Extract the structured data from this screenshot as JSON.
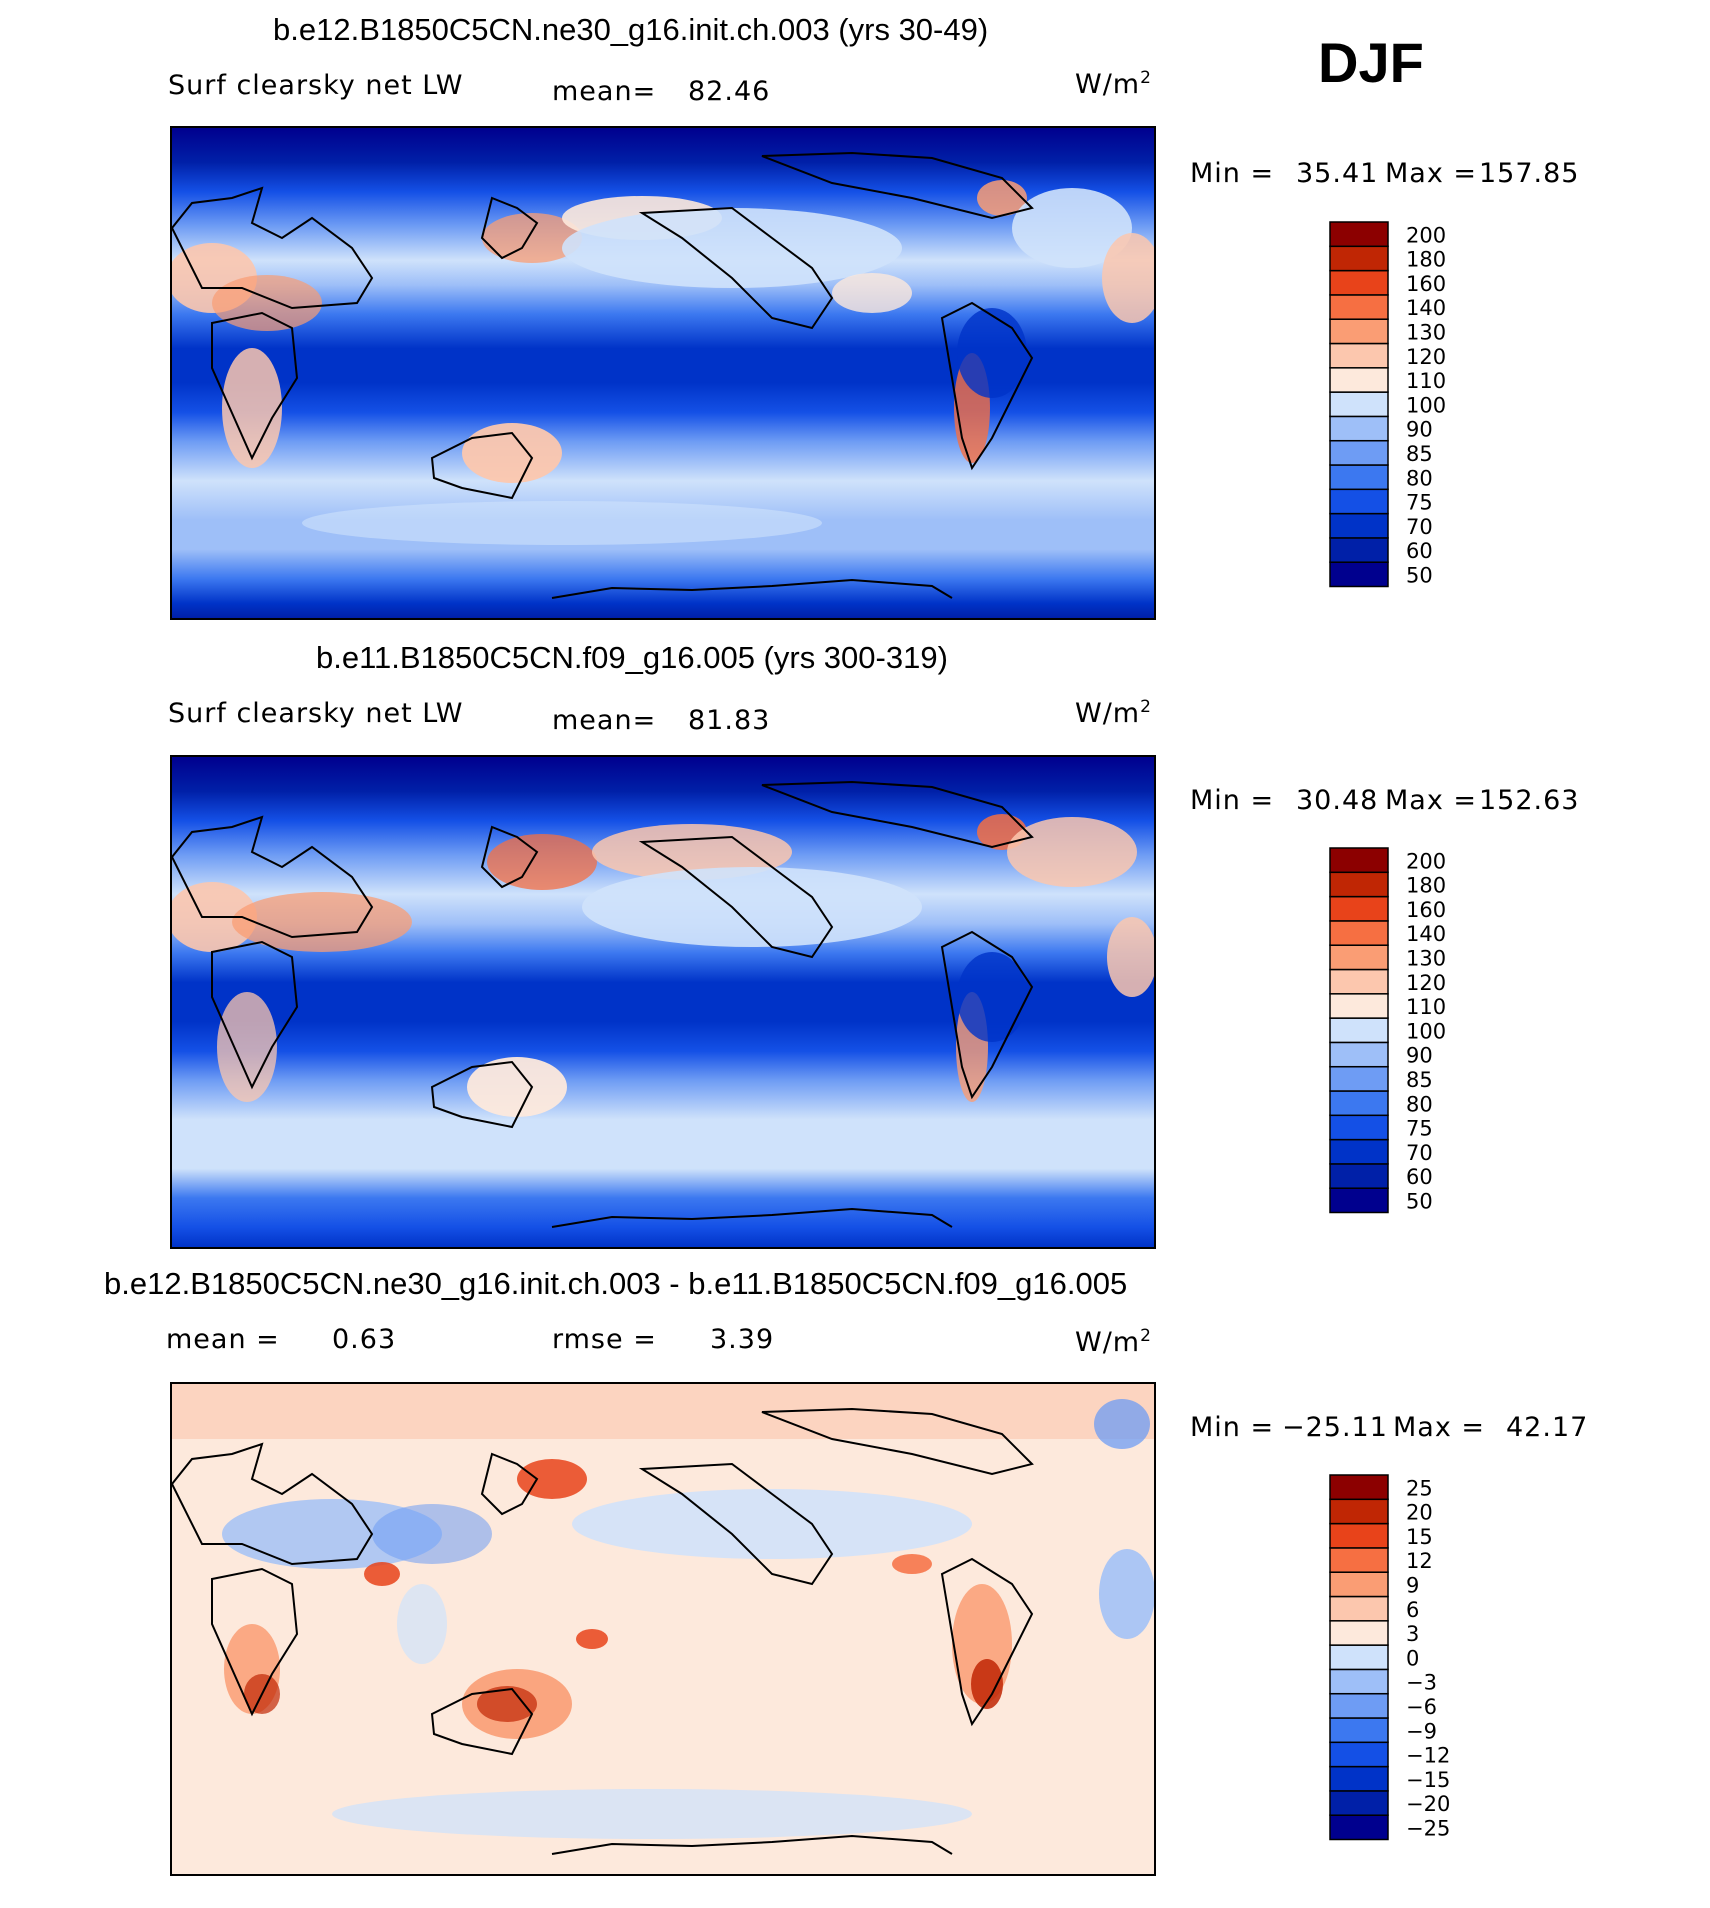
{
  "season": "DJF",
  "colors": {
    "full": [
      "#00008e",
      "#0020a8",
      "#0033c8",
      "#1450e6",
      "#3c78f0",
      "#6e9cf4",
      "#9ebff8",
      "#cfe2fb",
      "#fde9dc",
      "#fcc7ae",
      "#fa9d74",
      "#f66f42",
      "#e8431a",
      "#c02604",
      "#8c0000"
    ],
    "diff": [
      "#00008e",
      "#0020a8",
      "#0033c8",
      "#1450e6",
      "#3c78f0",
      "#6e9cf4",
      "#9ebff8",
      "#cfe2fb",
      "#fde9dc",
      "#fcc7ae",
      "#fa9d74",
      "#f66f42",
      "#e8431a",
      "#c02604",
      "#8c0000"
    ]
  },
  "panels": [
    {
      "title": "b.e12.B1850C5CN.ne30_g16.init.ch.003 (yrs 30-49)",
      "left_label": "Surf clearsky net LW",
      "mean_label": "mean=",
      "mean_value": "82.46",
      "units": "W/m",
      "units_exp": "2",
      "min_label": "Min =",
      "min_value": "35.41",
      "max_label": "Max =",
      "max_value": "157.85"
    },
    {
      "title": "b.e11.B1850C5CN.f09_g16.005 (yrs 300-319)",
      "left_label": "Surf clearsky net LW",
      "mean_label": "mean=",
      "mean_value": "81.83",
      "units": "W/m",
      "units_exp": "2",
      "min_label": "Min =",
      "min_value": "30.48",
      "max_label": "Max =",
      "max_value": "152.63"
    },
    {
      "title": "b.e12.B1850C5CN.ne30_g16.init.ch.003 - b.e11.B1850C5CN.f09_g16.005",
      "mean_label": "mean =",
      "mean_value": "0.63",
      "rmse_label": "rmse =",
      "rmse_value": "3.39",
      "units": "W/m",
      "units_exp": "2",
      "min_label": "Min =",
      "min_value": "−25.11",
      "max_label": "Max =",
      "max_value": "42.17"
    }
  ],
  "chart_data": [
    {
      "type": "heatmap",
      "title": "b.e12.B1850C5CN.ne30_g16.init.ch.003 (yrs 30-49)",
      "variable": "Surf clearsky net LW",
      "units": "W/m2",
      "mean": 82.46,
      "min": 35.41,
      "max": 157.85,
      "colorbar_levels": [
        50,
        60,
        70,
        75,
        80,
        85,
        90,
        100,
        110,
        120,
        130,
        140,
        160,
        180,
        200
      ]
    },
    {
      "type": "heatmap",
      "title": "b.e11.B1850C5CN.f09_g16.005 (yrs 300-319)",
      "variable": "Surf clearsky net LW",
      "units": "W/m2",
      "mean": 81.83,
      "min": 30.48,
      "max": 152.63,
      "colorbar_levels": [
        50,
        60,
        70,
        75,
        80,
        85,
        90,
        100,
        110,
        120,
        130,
        140,
        160,
        180,
        200
      ]
    },
    {
      "type": "heatmap",
      "title": "b.e12.B1850C5CN.ne30_g16.init.ch.003 - b.e11.B1850C5CN.f09_g16.005",
      "units": "W/m2",
      "mean": 0.63,
      "rmse": 3.39,
      "min": -25.11,
      "max": 42.17,
      "colorbar_levels": [
        -25,
        -20,
        -15,
        -12,
        -9,
        -6,
        -3,
        0,
        3,
        6,
        9,
        12,
        15,
        20,
        25
      ]
    }
  ],
  "colorbar_labels": {
    "full": [
      "200",
      "180",
      "160",
      "140",
      "130",
      "120",
      "110",
      "100",
      "90",
      "85",
      "80",
      "75",
      "70",
      "60",
      "50"
    ],
    "diff": [
      "25",
      "20",
      "15",
      "12",
      "9",
      "6",
      "3",
      "0",
      "−3",
      "−6",
      "−9",
      "−12",
      "−15",
      "−20",
      "−25"
    ]
  }
}
